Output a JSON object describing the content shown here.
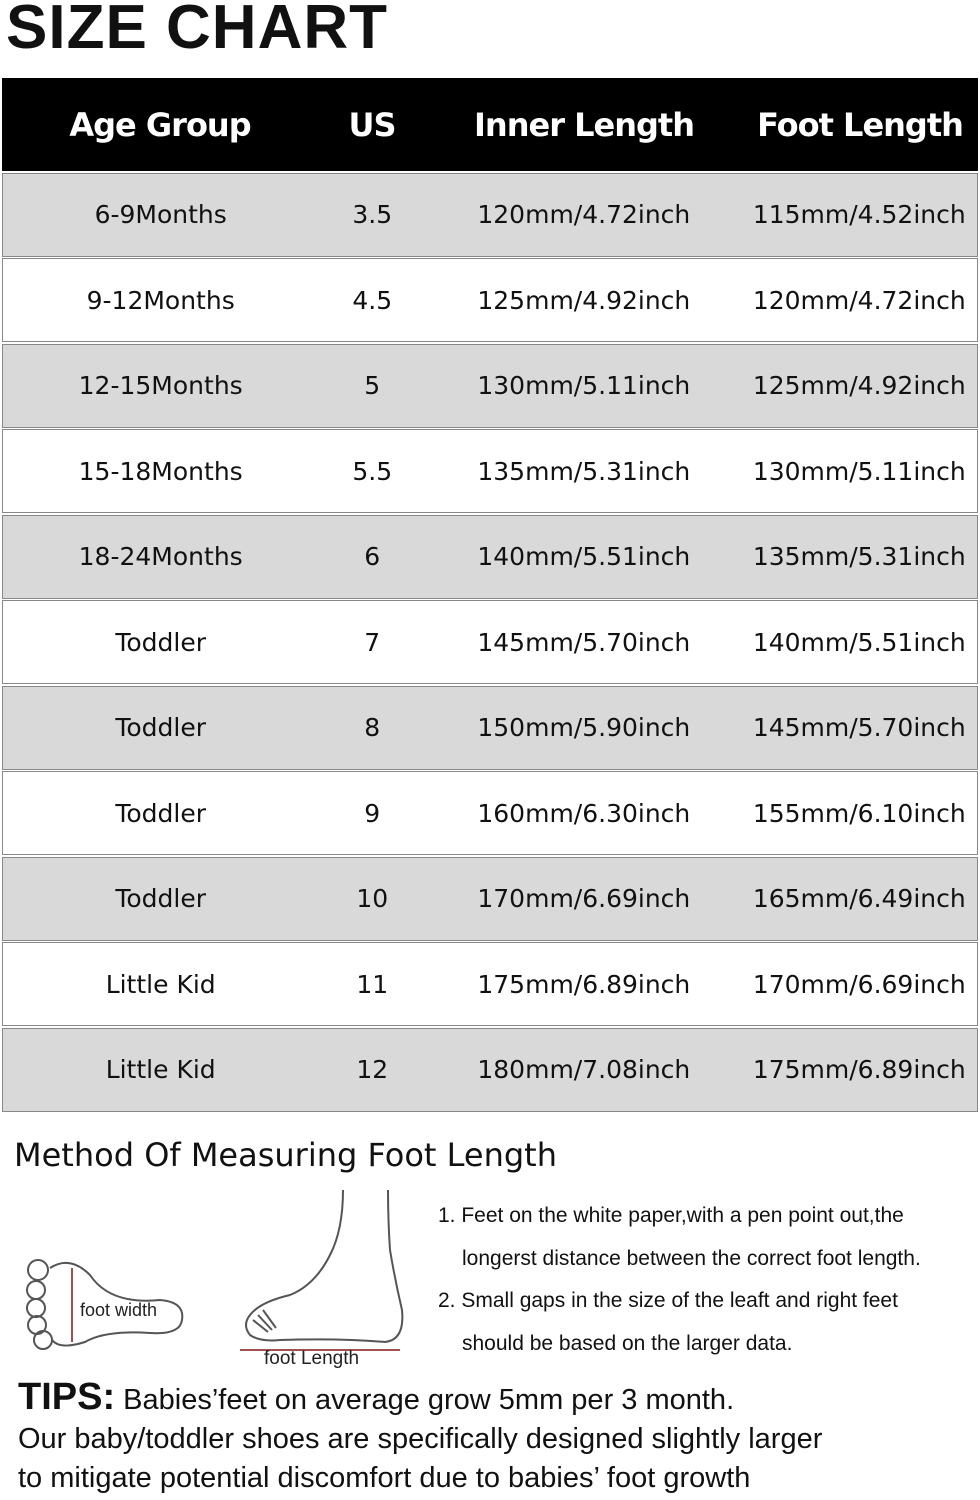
{
  "title": "SIZE CHART",
  "table": {
    "headers": [
      "Age Group",
      "US",
      "Inner Length",
      "Foot Length"
    ],
    "rows": [
      [
        "6-9Months",
        "3.5",
        "120mm/4.72inch",
        "115mm/4.52inch"
      ],
      [
        "9-12Months",
        "4.5",
        "125mm/4.92inch",
        "120mm/4.72inch"
      ],
      [
        "12-15Months",
        "5",
        "130mm/5.11inch",
        "125mm/4.92inch"
      ],
      [
        "15-18Months",
        "5.5",
        "135mm/5.31inch",
        "130mm/5.11inch"
      ],
      [
        "18-24Months",
        "6",
        "140mm/5.51inch",
        "135mm/5.31inch"
      ],
      [
        "Toddler",
        "7",
        "145mm/5.70inch",
        "140mm/5.51inch"
      ],
      [
        "Toddler",
        "8",
        "150mm/5.90inch",
        "145mm/5.70inch"
      ],
      [
        "Toddler",
        "9",
        "160mm/6.30inch",
        "155mm/6.10inch"
      ],
      [
        "Toddler",
        "10",
        "170mm/6.69inch",
        "165mm/6.49inch"
      ],
      [
        "Little Kid",
        "11",
        "175mm/6.89inch",
        "170mm/6.69inch"
      ],
      [
        "Little Kid",
        "12",
        "180mm/7.08inch",
        "175mm/6.89inch"
      ]
    ]
  },
  "method": {
    "heading": "Method Of Measuring Foot Length",
    "foot_width_label": "foot width",
    "foot_length_label": "foot Length",
    "steps": [
      "1. Feet on the white paper,with a pen point out,the",
      "longerst distance between the correct foot length.",
      "2. Small gaps in the size of the leaft and right feet",
      "should be based on the larger data."
    ]
  },
  "tips": {
    "label": "TIPS:",
    "line1": " Babies’feet on average grow 5mm per 3 month.",
    "line2": "Our baby/toddler shoes are specifically designed slightly larger",
    "line3": "to mitigate potential discomfort due to babies’ foot growth"
  },
  "colors": {
    "header_bg": "#000000",
    "row_alt": "#d9d9d9",
    "measure_line": "#a05050"
  }
}
